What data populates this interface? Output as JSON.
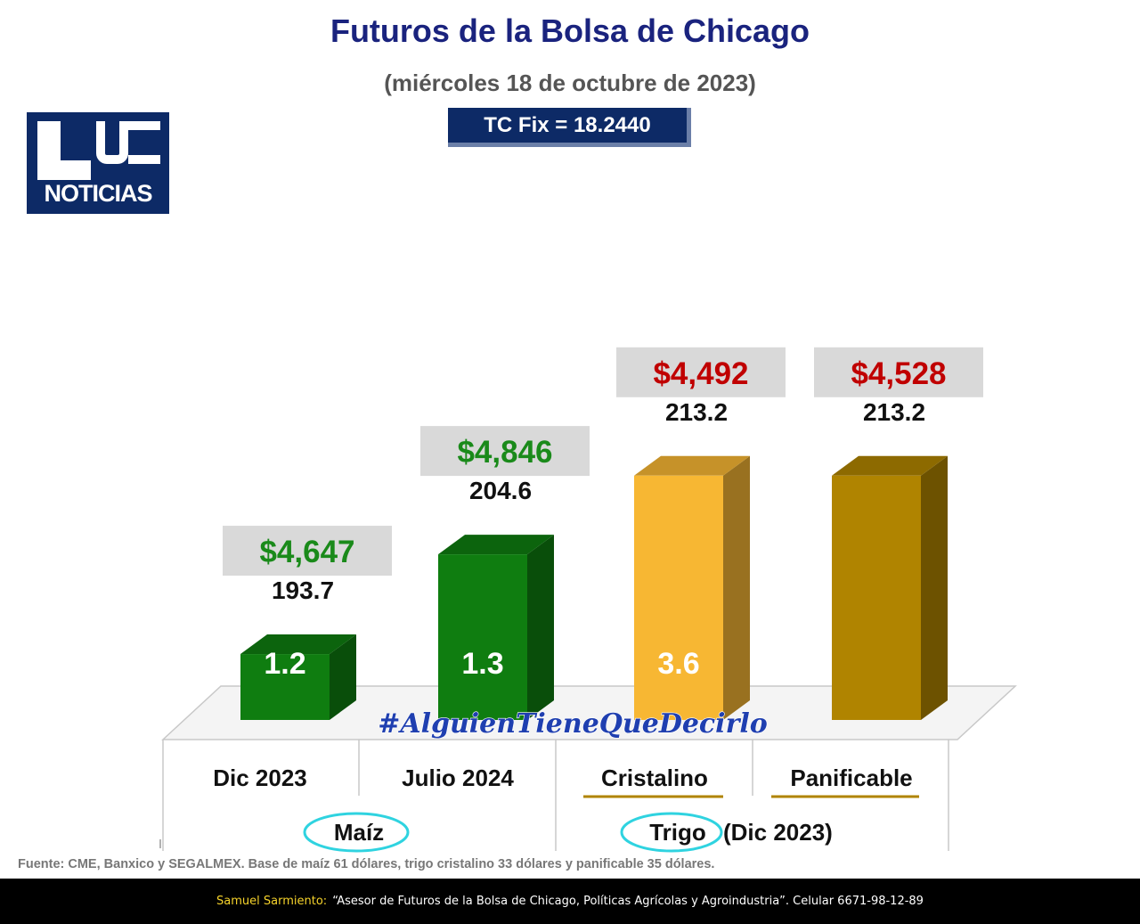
{
  "header": {
    "title": "Futuros de la Bolsa de Chicago",
    "subtitle": "(miércoles 18 de octubre de 2023)",
    "tc_fix": "TC Fix = 18.2440"
  },
  "logo": {
    "line1": "LUZ",
    "line2": "NOTICIAS"
  },
  "hashtag": "#AlguienTieneQueDecirlo",
  "colors": {
    "maiz_green": "#0f7d10",
    "cristalino_yellow": "#f7b733",
    "panificable_gold": "#b08400",
    "price_green": "#1a8a1a",
    "price_red": "#c00000",
    "label_bg": "#d9d9d9",
    "title_navy": "#1a237e"
  },
  "chart_data": {
    "type": "bar",
    "title": "Futuros de la Bolsa de Chicago",
    "categories": [
      "Dic 2023",
      "Julio 2024",
      "Cristalino",
      "Panificable"
    ],
    "groups": [
      {
        "label": "Maíz",
        "suffix": "",
        "categories": [
          "Dic 2023",
          "Julio 2024"
        ]
      },
      {
        "label": "Trigo",
        "suffix": "(Dic 2023)",
        "categories": [
          "Cristalino",
          "Panificable"
        ]
      }
    ],
    "series": [
      {
        "values": [
          193.7,
          204.6,
          213.2,
          213.2
        ]
      }
    ],
    "value_labels": [
      "193.7",
      "204.6",
      "213.2",
      "213.2"
    ],
    "price_labels": [
      "$4,647",
      "$4,846",
      "$4,492",
      "$4,528"
    ],
    "inner_labels": [
      "1.2",
      "1.3",
      "3.6",
      ""
    ]
  },
  "footer": {
    "source": "Fuente: CME, Banxico y SEGALMEX. Base de maíz 61 dólares, trigo cristalino 33 dólares y panificable 35 dólares.",
    "author_name": "Samuel Sarmiento:",
    "author_text": "“Asesor de Futuros de la Bolsa de Chicago, Políticas Agrícolas y Agroindustria”. Celular 6671-98-12-89"
  }
}
